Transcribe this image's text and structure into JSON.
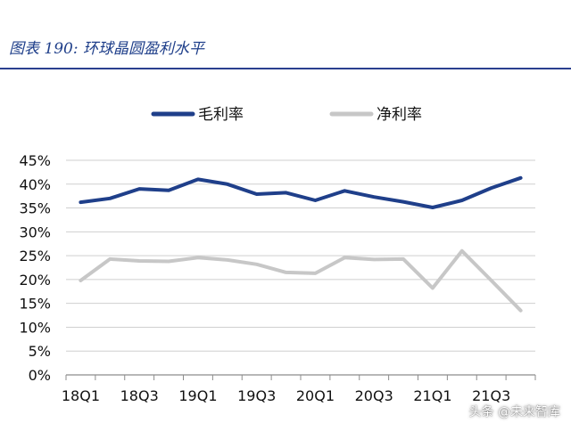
{
  "figure": {
    "title": "图表 190:  环球晶圆盈利水平",
    "watermark": "头条 @未来智库"
  },
  "colors": {
    "title": "#1f3f8a",
    "gross_margin": "#1f3f8a",
    "net_margin": "#c7c7c7",
    "grid": "#cfcfcf",
    "axis": "#8c8c8c",
    "text": "#111111"
  },
  "chart_data": {
    "type": "line",
    "x": [
      "18Q1",
      "18Q2",
      "18Q3",
      "18Q4",
      "19Q1",
      "19Q2",
      "19Q3",
      "19Q4",
      "20Q1",
      "20Q2",
      "20Q3",
      "20Q4",
      "21Q1",
      "21Q2",
      "21Q3",
      "21Q4"
    ],
    "x_tick_labels": [
      "18Q1",
      "",
      "18Q3",
      "",
      "19Q1",
      "",
      "19Q3",
      "",
      "20Q1",
      "",
      "20Q3",
      "",
      "21Q1",
      "",
      "21Q3",
      ""
    ],
    "series": [
      {
        "name": "毛利率",
        "values": [
          36.2,
          37.0,
          39.0,
          38.7,
          41.0,
          40.0,
          37.9,
          38.2,
          36.6,
          38.6,
          37.3,
          36.3,
          35.1,
          36.6,
          39.2,
          41.3
        ]
      },
      {
        "name": "净利率",
        "values": [
          19.8,
          24.3,
          23.9,
          23.8,
          24.6,
          24.1,
          23.2,
          21.5,
          21.3,
          24.6,
          24.2,
          24.3,
          18.2,
          26.0,
          19.8,
          13.5
        ]
      }
    ],
    "ylim": [
      0,
      45
    ],
    "y_ticks": [
      "0%",
      "5%",
      "10%",
      "15%",
      "20%",
      "25%",
      "30%",
      "35%",
      "40%",
      "45%"
    ],
    "y_tick_values": [
      0,
      5,
      10,
      15,
      20,
      25,
      30,
      35,
      40,
      45
    ],
    "grid": "horizontal",
    "legend": "top"
  }
}
